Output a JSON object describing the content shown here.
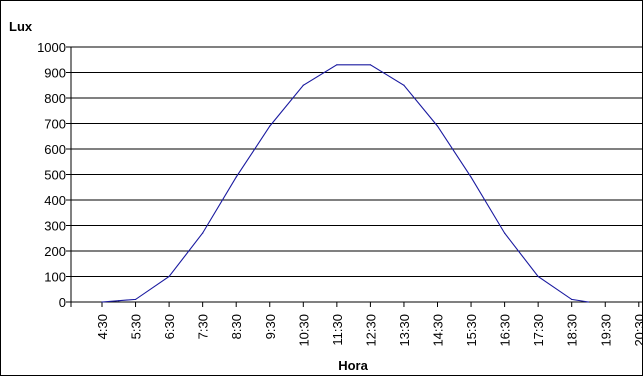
{
  "chart_data": {
    "type": "line",
    "title": "",
    "xlabel": "Hora",
    "ylabel": "Lux",
    "categories": [
      "4:30",
      "5:30",
      "6:30",
      "7:30",
      "8:30",
      "9:30",
      "10:30",
      "11:30",
      "12:30",
      "13:30",
      "14:30",
      "15:30",
      "16:30",
      "17:30",
      "18:30",
      "19:30",
      "20:30"
    ],
    "series": [
      {
        "x": [
          "4:30",
          "5:00",
          "5:30",
          "6:30",
          "7:30",
          "8:30",
          "9:30",
          "10:30",
          "11:30",
          "12:30",
          "13:30",
          "14:30",
          "15:30",
          "16:30",
          "17:30",
          "18:30",
          "19:00"
        ],
        "values": [
          0,
          5,
          10,
          100,
          270,
          490,
          690,
          850,
          930,
          930,
          850,
          690,
          490,
          270,
          100,
          10,
          0
        ],
        "color": "#1a1aa0"
      }
    ],
    "ylim": [
      0,
      1000
    ],
    "yticks": [
      0,
      100,
      200,
      300,
      400,
      500,
      600,
      700,
      800,
      900,
      1000
    ],
    "grid": "horizontal",
    "legend": "none",
    "line_color": "#1a1aa0",
    "grid_color": "#000000"
  }
}
